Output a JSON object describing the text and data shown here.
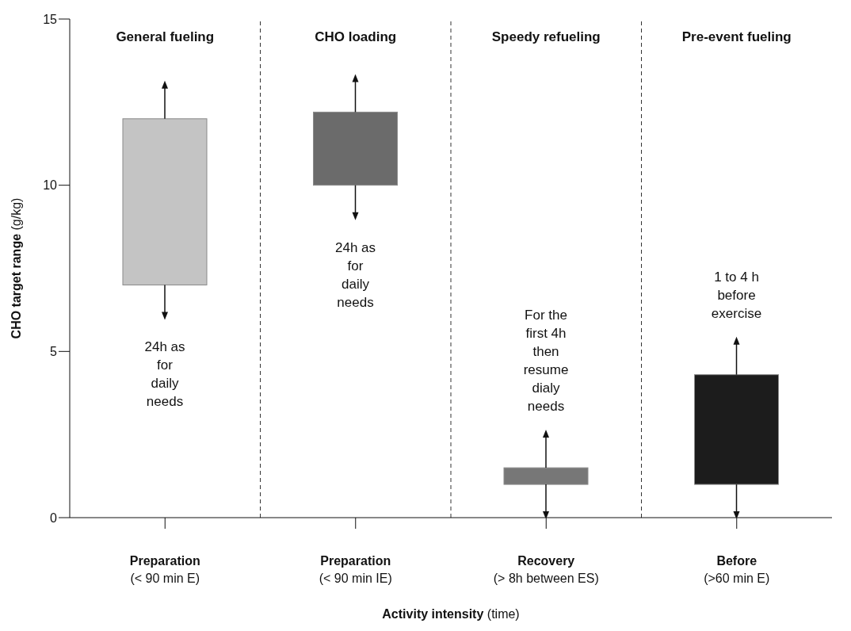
{
  "chart_data": {
    "type": "bar",
    "xlabel": "Activity intensity (time)",
    "ylabel": "CHO target range (g/kg)",
    "categories": [
      "Preparation (< 90 min E)",
      "Preparation (< 90 min IE)",
      "Recovery (> 8h between ES)",
      "Before (>60 min E)"
    ],
    "base": [
      7,
      10,
      1,
      1
    ],
    "values": [
      5,
      2.2,
      0.5,
      3.3
    ],
    "colors": [
      "#c4c4c4",
      "#6b6b6b",
      "#777777",
      "#1c1c1c"
    ],
    "ylim": [
      0,
      15
    ],
    "yticks": [
      0,
      5,
      10,
      15
    ],
    "annotations": [
      "General fueling",
      "CHO loading",
      "Speedy refueling",
      "Pre-event fueling",
      "24h as for daily needs",
      "24h as for daily needs",
      "For the first 4h then resume dialy needs",
      "1 to 4 h before exercise"
    ]
  }
}
